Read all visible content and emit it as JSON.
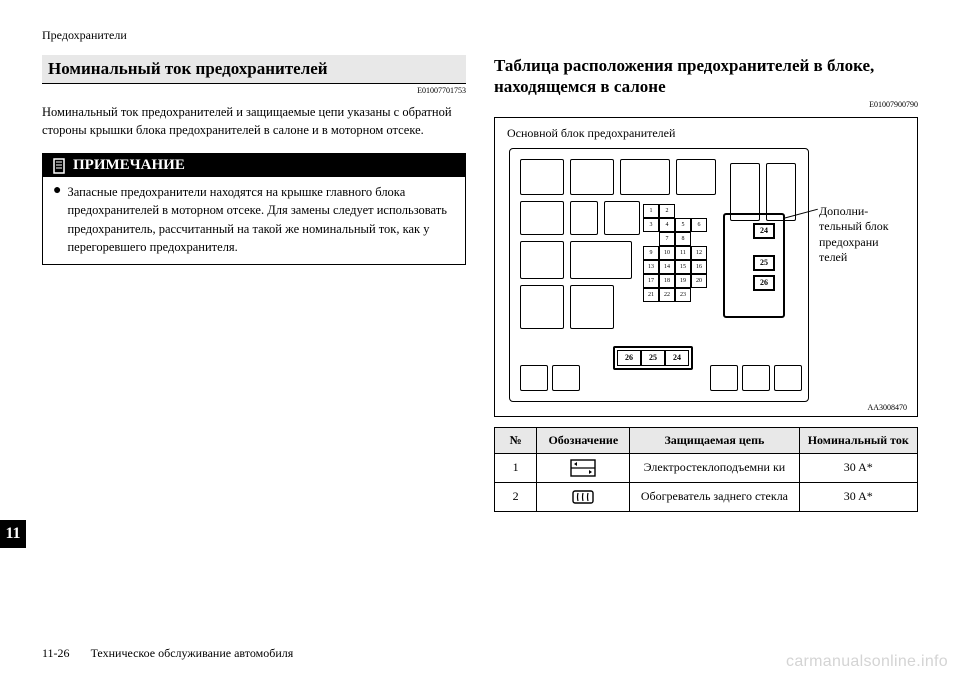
{
  "header": "Предохранители",
  "left": {
    "title": "Номинальный ток предохранителей",
    "code": "E01007701753",
    "paragraph": "Номинальный ток предохранителей и защищаемые цепи указаны с обратной стороны крышки блока предохранителей в салоне и в моторном отсеке.",
    "note_title": "ПРИМЕЧАНИЕ",
    "note_body": "Запасные предохранители находятся на крышке главного блока предохранителей в моторном отсеке. Для замены следует использовать предохранитель, рассчитанный на такой же номинальный ток, как у перегоревшего предохранителя."
  },
  "right": {
    "title": "Таблица расположения предохранителей в блоке, находящемся в салоне",
    "code": "E01007900790",
    "figure_caption": "Основной блок предохранителей",
    "aux_label": "Дополни-\nтельный блок\nпредохрани\nтелей",
    "figure_code": "AA3008470",
    "mini_fuses": [
      [
        "1",
        "2"
      ],
      [
        "3",
        "4",
        "5",
        "6"
      ],
      [
        "",
        "7",
        "8"
      ],
      [
        "9",
        "10",
        "11",
        "12"
      ],
      [
        "13",
        "14",
        "15",
        "16"
      ],
      [
        "17",
        "18",
        "19",
        "20"
      ],
      [
        "21",
        "22",
        "23"
      ]
    ],
    "aux_fuses": [
      "24",
      "25",
      "26"
    ],
    "spare_fuses": [
      "26",
      "25",
      "24"
    ],
    "table": {
      "headers": [
        "№",
        "Обозначение",
        "Защищаемая цепь",
        "Номинальный ток"
      ],
      "rows": [
        {
          "num": "1",
          "circuit": "Электростеклоподъемни ки",
          "amp": "30 A*",
          "icon": "window"
        },
        {
          "num": "2",
          "circuit": "Обогреватель заднего стекла",
          "amp": "30 A*",
          "icon": "defrost"
        }
      ]
    }
  },
  "side_tab": "11",
  "footer_page": "11-26",
  "footer_text": "Техническое обслуживание автомобиля",
  "watermark": "carmanualsonline.info"
}
